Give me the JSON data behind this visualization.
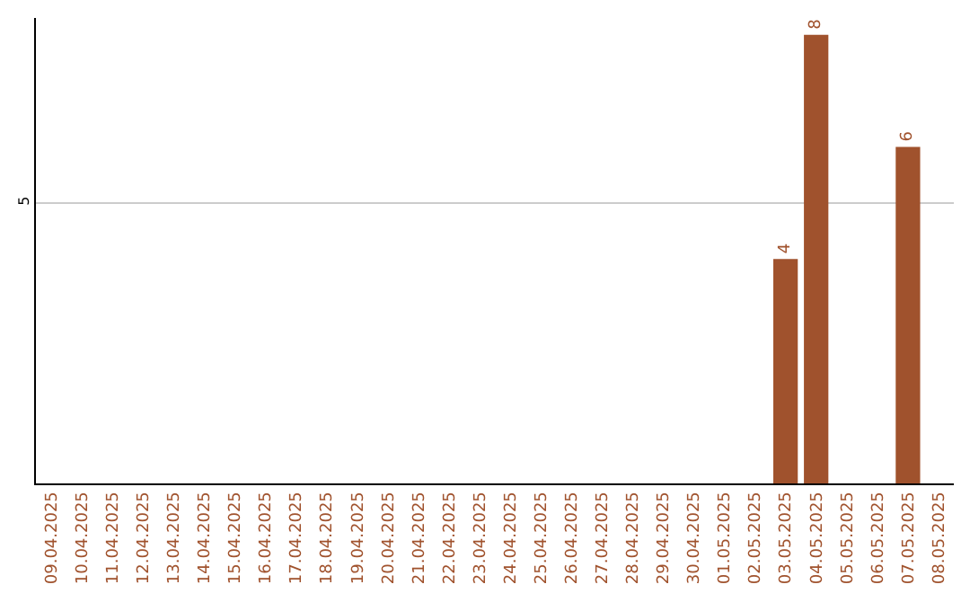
{
  "chart_data": {
    "type": "bar",
    "ylim": [
      0,
      8.3
    ],
    "categories": [
      "09.04.2025",
      "10.04.2025",
      "11.04.2025",
      "12.04.2025",
      "13.04.2025",
      "14.04.2025",
      "15.04.2025",
      "16.04.2025",
      "17.04.2025",
      "18.04.2025",
      "19.04.2025",
      "20.04.2025",
      "21.04.2025",
      "22.04.2025",
      "23.04.2025",
      "24.04.2025",
      "25.04.2025",
      "26.04.2025",
      "27.04.2025",
      "28.04.2025",
      "29.04.2025",
      "30.04.2025",
      "01.05.2025",
      "02.05.2025",
      "03.05.2025",
      "04.05.2025",
      "05.05.2025",
      "06.05.2025",
      "07.05.2025",
      "08.05.2025"
    ],
    "values": [
      null,
      null,
      null,
      null,
      null,
      null,
      null,
      null,
      null,
      null,
      null,
      null,
      null,
      null,
      null,
      null,
      null,
      null,
      null,
      null,
      null,
      null,
      null,
      null,
      4,
      8,
      null,
      null,
      6,
      null
    ],
    "data_labels": true,
    "color": "#a0522d",
    "yticks": [
      5
    ],
    "grid": "y",
    "legend": false
  }
}
